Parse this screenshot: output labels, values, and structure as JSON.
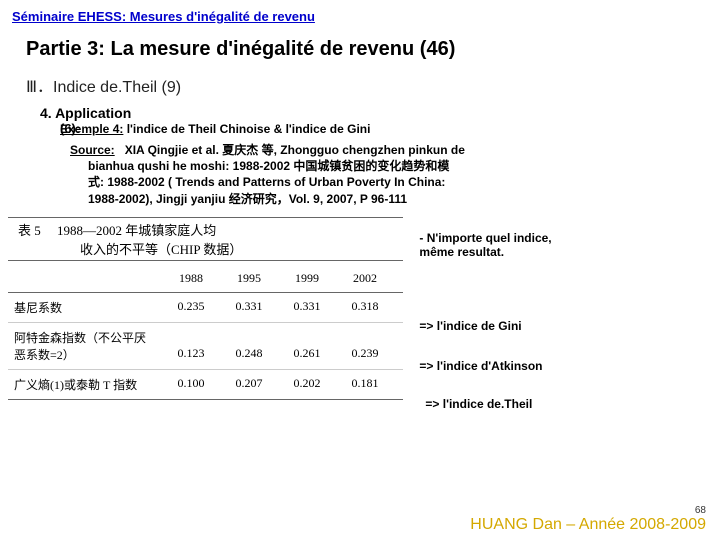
{
  "header": {
    "title": "Séminaire EHESS:  Mesures d'inégalité de revenu"
  },
  "mainTitle": "Partie 3:  La mesure d'inégalité de revenu (46)",
  "section": "Ⅲ．Indice de.Theil (9)",
  "subsection": {
    "num": "4.",
    "label": "Application",
    "sub": "(6):"
  },
  "example": {
    "label": "Exemple 4:",
    "text": "l'indice de Theil Chinoise & l'indice de Gini"
  },
  "source": {
    "label": "Source:",
    "line1": "XIA Qingjie et al. 夏庆杰 等, Zhongguo chengzhen pinkun de",
    "line2": "bianhua qushi he moshi: 1988-2002 中国城镇贫困的变化趋势和模",
    "line3": "式: 1988-2002 ( Trends and Patterns of Urban Poverty In China:",
    "line4": "1988-2002), Jingji yanjiu 经济研究，Vol. 9, 2007, P 96-111"
  },
  "table": {
    "titleA": "表 5",
    "titleB": "1988—2002 年城镇家庭人均",
    "subtitle": "收入的不平等（CHIP 数据）",
    "cols": [
      "",
      "1988",
      "1995",
      "1999",
      "2002"
    ],
    "rows": [
      [
        "基尼系数",
        "0.235",
        "0.331",
        "0.331",
        "0.318"
      ],
      [
        "阿特金森指数（不公平厌",
        "",
        "",
        "",
        ""
      ],
      [
        "恶系数=2）",
        "0.123",
        "0.248",
        "0.261",
        "0.239"
      ],
      [
        "广义熵(1)或泰勒 T 指数",
        "0.100",
        "0.207",
        "0.202",
        "0.181"
      ]
    ]
  },
  "notes": {
    "n1a": "- N'importe quel indice,",
    "n1b": "même resultat.",
    "n2": "=> l'indice de Gini",
    "n3": "=> l'indice d'Atkinson",
    "n4": "=> l'indice de.Theil"
  },
  "footer": {
    "page": "68",
    "author": "HUANG Dan – Année 2008-2009"
  }
}
